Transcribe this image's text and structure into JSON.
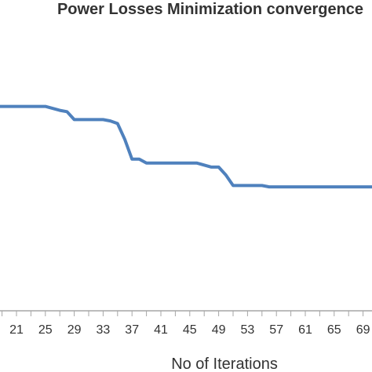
{
  "chart_data": {
    "type": "line",
    "title": "Power Losses Minimization convergence",
    "xlabel": "No of Iterations",
    "ylabel": "",
    "x_ticks": [
      "21",
      "25",
      "29",
      "33",
      "37",
      "41",
      "45",
      "49",
      "53",
      "57",
      "61",
      "65",
      "69"
    ],
    "grid": false,
    "legend": "none",
    "colors": {
      "line": "#4f81bd",
      "axis": "#a6a6a6",
      "text": "#333333"
    },
    "series": [
      {
        "x": [
          18,
          25,
          27,
          28,
          29,
          33,
          34,
          35,
          36,
          37,
          38,
          39,
          46,
          48,
          49,
          50,
          51,
          55,
          56,
          71
        ],
        "y": [
          0.555,
          0.555,
          0.552,
          0.551,
          0.545,
          0.545,
          0.544,
          0.542,
          0.53,
          0.515,
          0.515,
          0.512,
          0.512,
          0.509,
          0.509,
          0.503,
          0.495,
          0.495,
          0.494,
          0.494
        ]
      }
    ],
    "xlim": [
      18,
      71
    ],
    "ylim": [
      0.4,
      0.6
    ]
  }
}
